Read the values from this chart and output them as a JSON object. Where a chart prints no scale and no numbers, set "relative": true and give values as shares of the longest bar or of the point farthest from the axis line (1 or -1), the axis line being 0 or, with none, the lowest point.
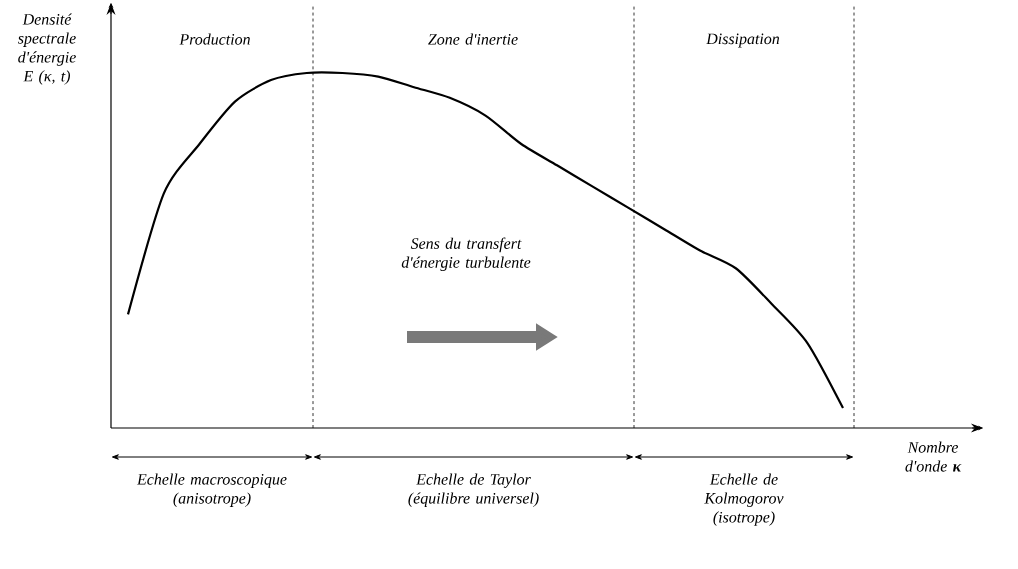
{
  "chart_data": {
    "type": "line",
    "relative": true,
    "color": "#000000",
    "ylabel": "Densité spectrale d'énergie E (κ, t)",
    "xlabel": "Nombre d'onde **κ**",
    "categories": [
      null,
      null,
      null,
      null,
      null,
      null,
      null,
      null,
      null,
      null,
      null,
      null,
      null,
      null,
      null,
      null,
      null,
      null,
      null,
      null,
      null
    ],
    "values": [
      0.32,
      0.66,
      0.8,
      0.92,
      0.98,
      1.0,
      1.0,
      0.99,
      0.96,
      0.93,
      0.88,
      0.8,
      0.74,
      0.68,
      0.62,
      0.56,
      0.5,
      0.45,
      0.35,
      0.24,
      0.056
    ],
    "annotations": [
      "Production",
      "Zone d'inertie",
      "Dissipation",
      "Sens du transfert d'énergie turbulente",
      "Echelle macroscopique (anisotrope)",
      "Echelle de Taylor (équilibre universel)",
      "Echelle de Kolmogorov (isotrope)"
    ]
  }
}
